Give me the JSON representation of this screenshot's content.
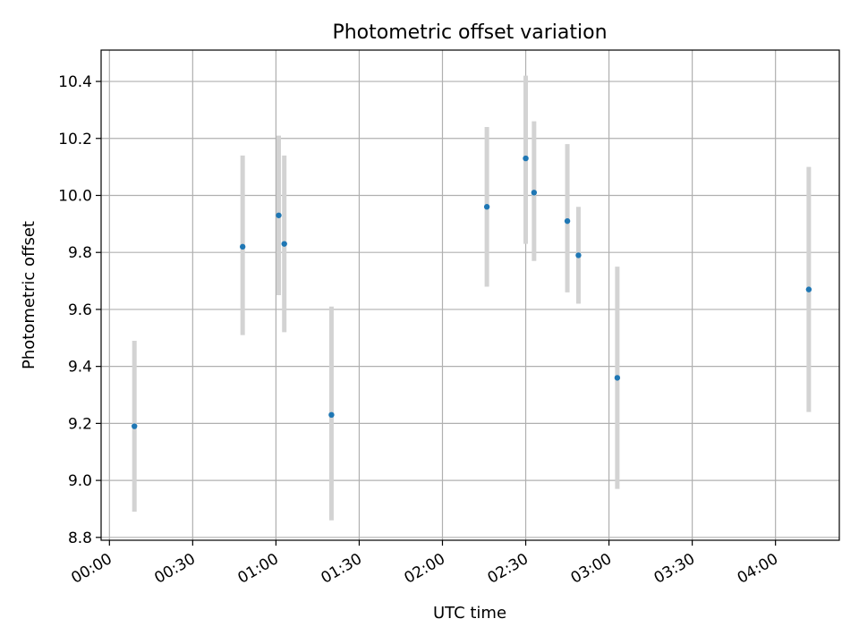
{
  "chart_data": {
    "type": "scatter",
    "title": "Photometric offset variation",
    "xlabel": "UTC time",
    "ylabel": "Photometric offset",
    "x_ticks": [
      "00:00",
      "00:30",
      "01:00",
      "01:30",
      "02:00",
      "02:30",
      "03:00",
      "03:30",
      "04:00"
    ],
    "y_ticks": [
      "8.8",
      "9.0",
      "9.2",
      "9.4",
      "9.6",
      "9.8",
      "10.0",
      "10.2",
      "10.4"
    ],
    "xlim": [
      "23:57",
      "04:23"
    ],
    "ylim": [
      8.79,
      10.51
    ],
    "grid": true,
    "legend": "none",
    "points": [
      {
        "x": "00:09",
        "y": 9.19,
        "err_low": 8.89,
        "err_high": 9.49
      },
      {
        "x": "00:48",
        "y": 9.82,
        "err_low": 9.51,
        "err_high": 10.14
      },
      {
        "x": "01:01",
        "y": 9.93,
        "err_low": 9.65,
        "err_high": 10.21
      },
      {
        "x": "01:03",
        "y": 9.83,
        "err_low": 9.52,
        "err_high": 10.14
      },
      {
        "x": "01:20",
        "y": 9.23,
        "err_low": 8.86,
        "err_high": 9.61
      },
      {
        "x": "02:16",
        "y": 9.96,
        "err_low": 9.68,
        "err_high": 10.24
      },
      {
        "x": "02:30",
        "y": 10.13,
        "err_low": 9.83,
        "err_high": 10.42
      },
      {
        "x": "02:33",
        "y": 10.01,
        "err_low": 9.77,
        "err_high": 10.26
      },
      {
        "x": "02:45",
        "y": 9.91,
        "err_low": 9.66,
        "err_high": 10.18
      },
      {
        "x": "02:49",
        "y": 9.79,
        "err_low": 9.62,
        "err_high": 9.96
      },
      {
        "x": "03:03",
        "y": 9.36,
        "err_low": 8.97,
        "err_high": 9.75
      },
      {
        "x": "04:12",
        "y": 9.67,
        "err_low": 9.24,
        "err_high": 10.1
      }
    ],
    "colors": {
      "marker": "#1f77b4",
      "errorbar": "#d3d3d3",
      "grid": "#b0b0b0"
    }
  }
}
